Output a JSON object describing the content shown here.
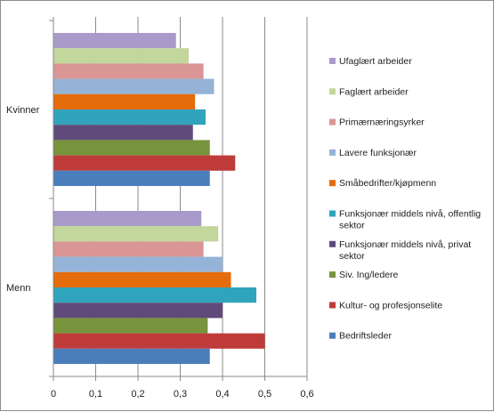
{
  "chart_data": {
    "type": "bar",
    "orientation": "horizontal",
    "categories": [
      "Kvinner",
      "Menn"
    ],
    "xlim": [
      0,
      0.6
    ],
    "xticks": [
      "0",
      "0,1",
      "0,2",
      "0,3",
      "0,4",
      "0,5",
      "0,6"
    ],
    "grid": true,
    "legend_position": "right",
    "series": [
      {
        "name": "Ufaglært arbeider",
        "color": "#a99bc9",
        "values": [
          0.29,
          0.35
        ]
      },
      {
        "name": "Faglært arbeider",
        "color": "#c3d69b",
        "values": [
          0.32,
          0.39
        ]
      },
      {
        "name": "Primærnæringsyrker",
        "color": "#d99694",
        "values": [
          0.355,
          0.355
        ]
      },
      {
        "name": "Lavere funksjonær",
        "color": "#95b3d7",
        "values": [
          0.38,
          0.4
        ]
      },
      {
        "name": "Småbedrifter/kjøpmenn",
        "color": "#e46c0a",
        "values": [
          0.335,
          0.42
        ]
      },
      {
        "name": "Funksjonær middels nivå, offentlig sektor",
        "color": "#31a4bd",
        "values": [
          0.36,
          0.48
        ]
      },
      {
        "name": "Funksjonær middels nivå, privat sektor",
        "color": "#604a7b",
        "values": [
          0.33,
          0.4
        ]
      },
      {
        "name": "Siv. Ing/ledere",
        "color": "#77933c",
        "values": [
          0.37,
          0.365
        ]
      },
      {
        "name": "Kultur- og profesjonselite",
        "color": "#be3b3a",
        "values": [
          0.43,
          0.5
        ]
      },
      {
        "name": "Bedriftsleder",
        "color": "#4a7ebb",
        "values": [
          0.37,
          0.37
        ]
      }
    ]
  }
}
